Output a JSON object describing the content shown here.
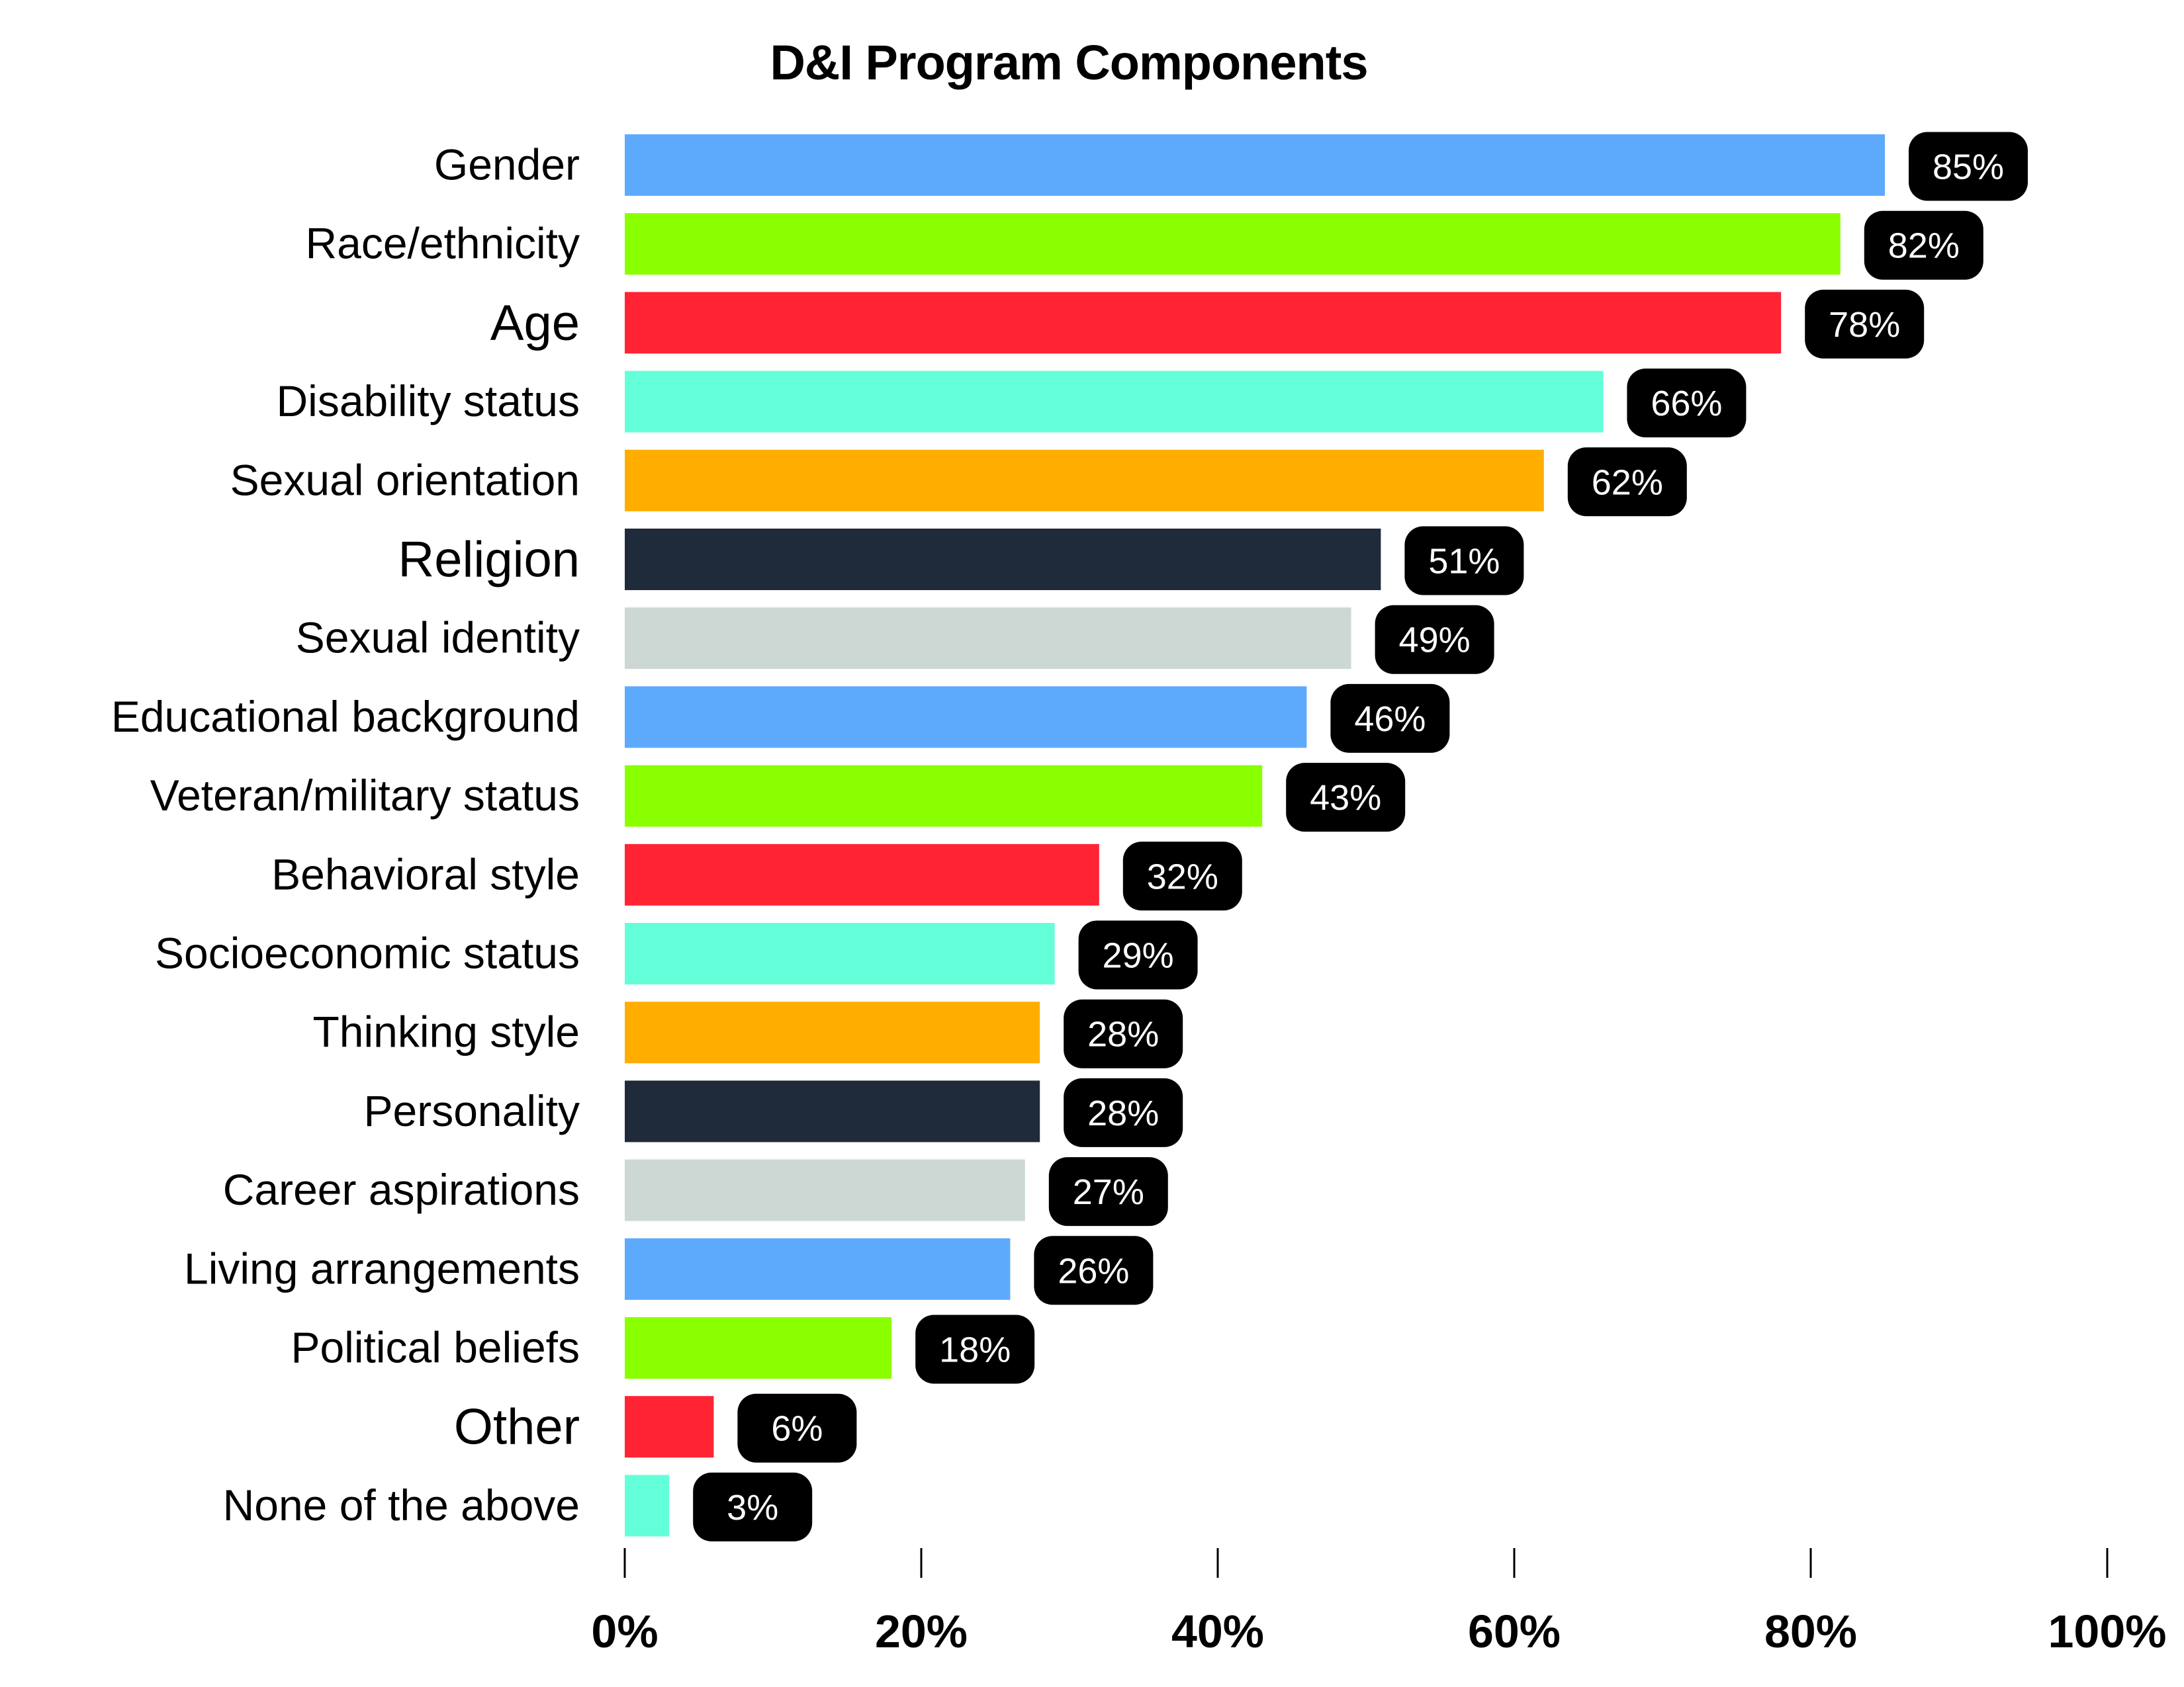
{
  "chart_data": {
    "type": "bar",
    "orientation": "horizontal",
    "title": "D&I Program Components",
    "xlabel": "",
    "ylabel": "",
    "xlim": [
      0,
      100
    ],
    "x_ticks": [
      0,
      20,
      40,
      60,
      80,
      100
    ],
    "x_tick_labels": [
      "0%",
      "20%",
      "40%",
      "60%",
      "80%",
      "100%"
    ],
    "grid": false,
    "legend": "none",
    "categories": [
      "Gender",
      "Race/ethnicity",
      "Age",
      "Disability status",
      "Sexual orientation",
      "Religion",
      "Sexual identity",
      "Educational background",
      "Veteran/military status",
      "Behavioral style",
      "Socioeconomic status",
      "Thinking style",
      "Personality",
      "Career aspirations",
      "Living arrangements",
      "Political beliefs",
      "Other",
      "None of the above"
    ],
    "values": [
      85,
      82,
      78,
      66,
      62,
      51,
      49,
      46,
      43,
      32,
      29,
      28,
      28,
      27,
      26,
      18,
      6,
      3
    ],
    "value_labels": [
      "85%",
      "82%",
      "78%",
      "66%",
      "62%",
      "51%",
      "49%",
      "46%",
      "43%",
      "32%",
      "29%",
      "28%",
      "28%",
      "27%",
      "26%",
      "18%",
      "6%",
      "3%"
    ],
    "bar_colors": [
      "#5DAAFD",
      "#8AFF00",
      "#FF2334",
      "#63FFD9",
      "#FFAE00",
      "#1F2B3A",
      "#CDD8D5",
      "#5DAAFD",
      "#8AFF00",
      "#FF2334",
      "#63FFD9",
      "#FFAE00",
      "#1F2B3A",
      "#CDD8D5",
      "#5DAAFD",
      "#8AFF00",
      "#FF2334",
      "#63FFD9"
    ],
    "emphasized_labels": [
      "Age",
      "Religion",
      "Other"
    ],
    "value_label_style": {
      "background": "#000000",
      "text": "#FFFFFF"
    }
  }
}
